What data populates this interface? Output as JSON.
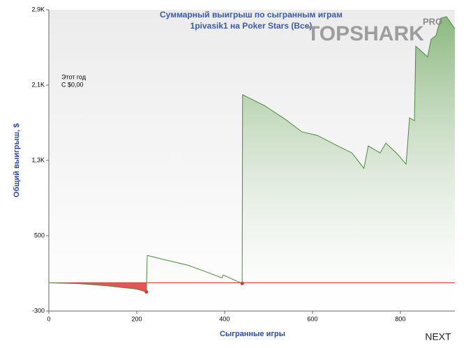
{
  "logo": "TOPSHARK",
  "logo_badge": "PRO",
  "next_button": "NEXT",
  "chart_data": {
    "type": "line",
    "title": "Суммарный выигрыш по сыгранным играм",
    "subtitle": "1pivasik1 на Poker Stars (Все)",
    "xlabel": "Сыгранные игры",
    "ylabel": "Общий выигрыш, $",
    "annotation": [
      "Этот год",
      "С $0,00"
    ],
    "x": [
      0,
      63,
      127,
      200,
      222,
      224,
      270,
      317,
      365,
      394,
      397,
      429,
      440,
      441,
      492,
      540,
      576,
      611,
      651,
      690,
      717,
      727,
      754,
      767,
      794,
      813,
      821,
      832,
      835,
      862,
      870,
      881,
      892,
      905,
      924
    ],
    "series": [
      {
        "name": "Общий выигрыш",
        "color": "#4a8a3f",
        "values": [
          0,
          -7,
          -30,
          -67,
          -97,
          291,
          238,
          186,
          104,
          52,
          82,
          15,
          -7,
          1998,
          1879,
          1730,
          1603,
          1566,
          1469,
          1379,
          1215,
          1454,
          1379,
          1484,
          1364,
          1260,
          1752,
          1722,
          2513,
          2401,
          2587,
          2625,
          2811,
          2826,
          2699
        ]
      }
    ],
    "negative_color": "#e03030",
    "xlim": [
      0,
      924
    ],
    "ylim": [
      -300,
      2900
    ],
    "xticks": [
      0,
      200,
      400,
      600,
      800
    ],
    "yticks": [
      {
        "value": 2900,
        "label": "2,9K"
      },
      {
        "value": 2100,
        "label": "2,1K"
      },
      {
        "value": 1300,
        "label": "1,3K"
      },
      500,
      -300
    ]
  }
}
